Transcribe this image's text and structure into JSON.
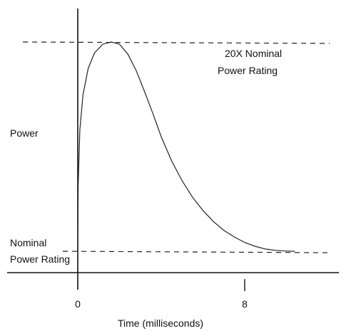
{
  "chart_data": {
    "type": "line",
    "title": "",
    "xlabel": "Time (milliseconds)",
    "ylabel": "Power",
    "x_ticks": [
      {
        "value": 0,
        "label": "0"
      },
      {
        "value": 8,
        "label": "8"
      }
    ],
    "xlim": [
      0,
      12
    ],
    "ylim": [
      -1.5,
      22
    ],
    "grid": false,
    "reference_lines": [
      {
        "name": "20X Nominal Power Rating",
        "label_lines": [
          "20X Nominal",
          "Power Rating"
        ],
        "y": 20
      },
      {
        "name": "Nominal Power Rating",
        "label_lines": [
          "Nominal",
          "Power Rating"
        ],
        "y": 1
      }
    ],
    "series": [
      {
        "x": [
          0,
          0.02,
          0.1,
          0.25,
          0.5,
          0.8,
          1.2,
          1.6,
          2.0,
          2.4,
          2.8,
          3.2,
          3.6,
          4.0,
          4.5,
          5.0,
          5.5,
          6.0,
          6.5,
          7.0,
          7.5,
          8.0,
          8.5,
          9.0,
          9.5,
          10.0,
          10.4
        ],
        "y": [
          1,
          7,
          12,
          15.2,
          17.6,
          19.0,
          19.8,
          20.0,
          19.8,
          18.9,
          17.4,
          15.5,
          13.5,
          11.4,
          9.2,
          7.4,
          5.9,
          4.7,
          3.7,
          2.9,
          2.3,
          1.8,
          1.45,
          1.2,
          1.08,
          1.02,
          1.0
        ]
      }
    ]
  }
}
